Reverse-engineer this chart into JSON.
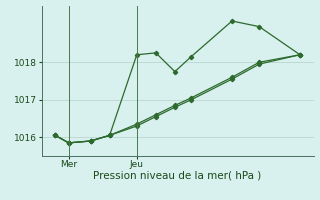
{
  "xlabel": "Pression niveau de la mer( hPa )",
  "background_color": "#d8f0ee",
  "line_color": "#2d6a2d",
  "grid_color": "#b8d8d0",
  "yticks": [
    1016,
    1017,
    1018
  ],
  "ylim": [
    1015.5,
    1019.5
  ],
  "xlim": [
    0,
    10
  ],
  "xtick_positions": [
    1.0,
    3.5
  ],
  "xtick_labels": [
    "Mer",
    "Jeu"
  ],
  "vline_x": [
    1.0,
    3.5
  ],
  "series1_x": [
    0.5,
    1.0,
    1.8,
    2.5,
    3.5,
    4.2,
    4.9,
    5.5,
    7.0,
    8.0,
    9.5
  ],
  "series1_y": [
    1016.05,
    1015.85,
    1015.9,
    1016.05,
    1018.2,
    1018.25,
    1017.75,
    1018.15,
    1019.1,
    1018.95,
    1018.2
  ],
  "series2_x": [
    0.5,
    1.0,
    1.8,
    2.5,
    3.5,
    4.2,
    4.9,
    5.5,
    7.0,
    8.0,
    9.5
  ],
  "series2_y": [
    1016.05,
    1015.85,
    1015.9,
    1016.05,
    1016.35,
    1016.6,
    1016.85,
    1017.05,
    1017.6,
    1018.0,
    1018.2
  ],
  "series3_x": [
    0.5,
    1.0,
    1.8,
    2.5,
    3.5,
    4.2,
    4.9,
    5.5,
    7.0,
    8.0,
    9.5
  ],
  "series3_y": [
    1016.05,
    1015.85,
    1015.9,
    1016.05,
    1016.3,
    1016.55,
    1016.8,
    1017.0,
    1017.55,
    1017.95,
    1018.2
  ],
  "figsize": [
    3.2,
    2.0
  ],
  "dpi": 100
}
